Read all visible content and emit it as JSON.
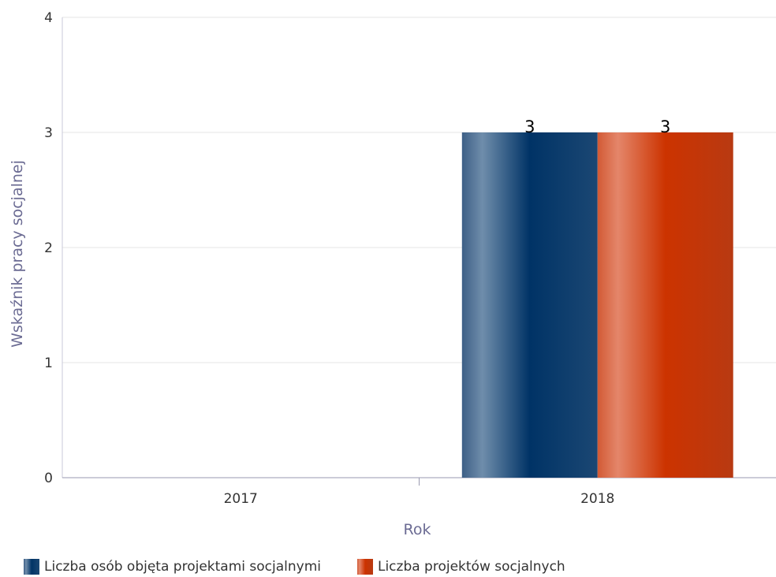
{
  "chart_data": {
    "type": "bar",
    "categories": [
      "2017",
      "2018"
    ],
    "series": [
      {
        "name": "Liczba osób objęta projektami socjalnymi",
        "values": [
          0,
          3
        ],
        "color": "#003366"
      },
      {
        "name": "Liczba projektów socjalnych",
        "values": [
          0,
          3
        ],
        "color": "#cc3300"
      }
    ],
    "data_labels": [
      "3",
      "3"
    ],
    "xlabel": "Rok",
    "ylabel": "Wskaźnik pracy socjalnej",
    "ylim": [
      0,
      4
    ],
    "yticks": [
      "0",
      "1",
      "2",
      "3",
      "4"
    ],
    "grid": true,
    "legend_position": "bottom-left"
  }
}
